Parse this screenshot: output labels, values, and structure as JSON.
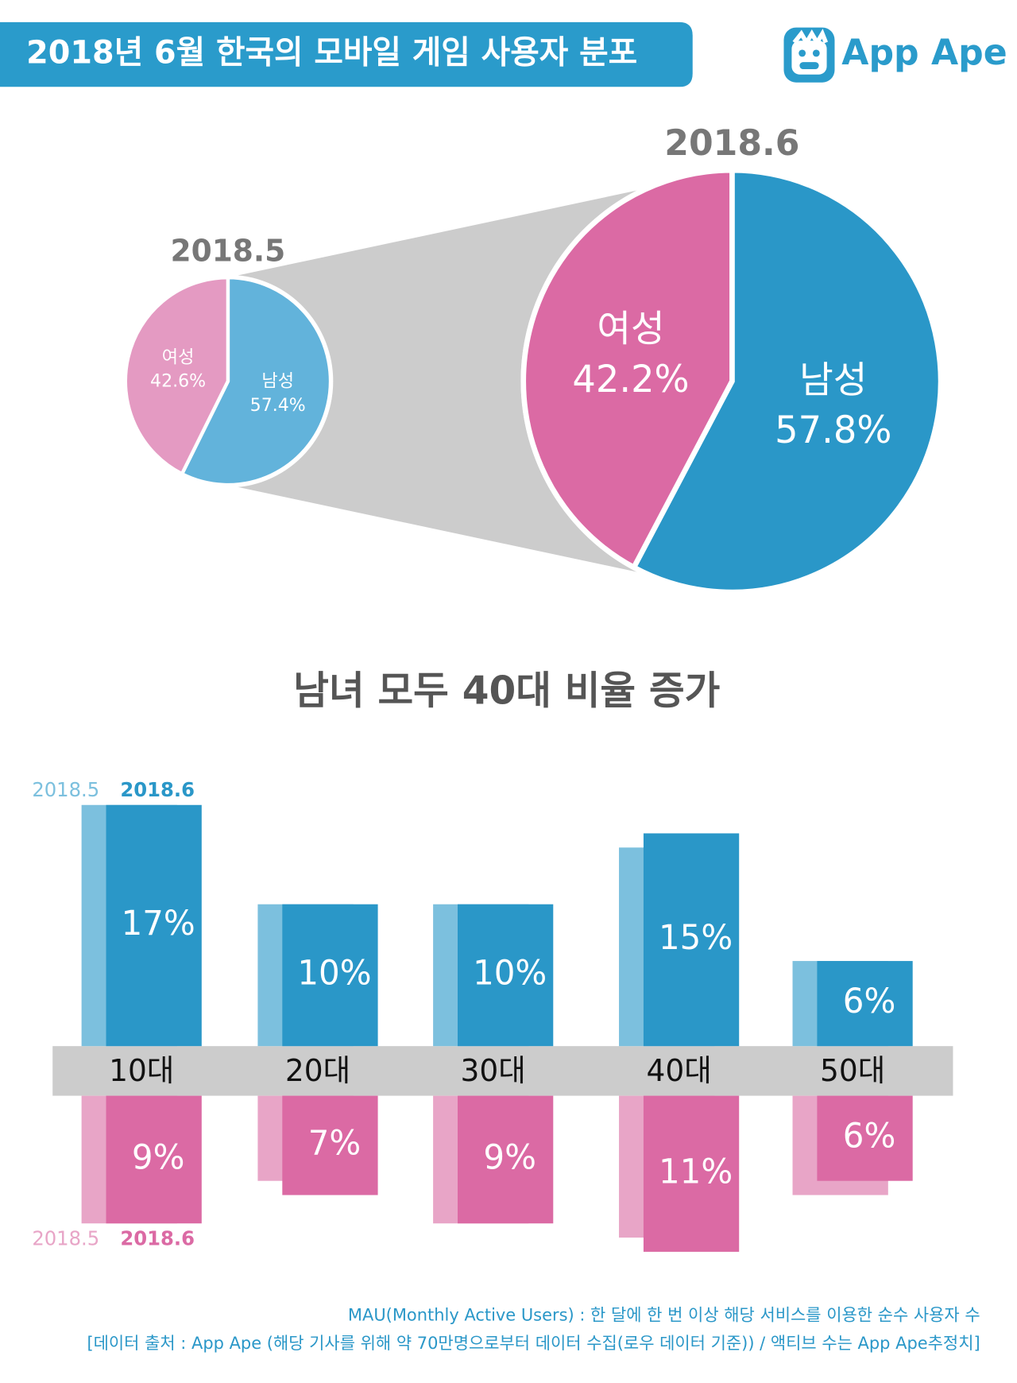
{
  "header": {
    "title": "2018년 6월 한국의 모바일 게임 사용자 분포",
    "brand": "App Ape"
  },
  "chart_data": [
    {
      "type": "pie",
      "title": "2018.5",
      "categories": [
        "남성",
        "여성"
      ],
      "values": [
        57.4,
        42.6
      ],
      "value_labels": [
        "57.4%",
        "42.6%"
      ],
      "colors": [
        "#62b3db",
        "#e49ac2"
      ]
    },
    {
      "type": "pie",
      "title": "2018.6",
      "categories": [
        "남성",
        "여성"
      ],
      "values": [
        57.8,
        42.2
      ],
      "value_labels": [
        "57.8%",
        "42.2%"
      ],
      "colors": [
        "#2a97c8",
        "#db6aa4"
      ]
    },
    {
      "type": "bar",
      "title": "남녀 모두 40대 비율 증가",
      "categories": [
        "10대",
        "20대",
        "30대",
        "40대",
        "50대"
      ],
      "series": [
        {
          "name": "2018.5",
          "color": "#7cc0de",
          "direction": "up",
          "values": [
            17,
            10,
            10,
            14,
            6
          ]
        },
        {
          "name": "2018.6",
          "color": "#2a97c8",
          "direction": "up",
          "values": [
            17,
            10,
            10,
            15,
            6
          ],
          "value_labels": [
            "17%",
            "10%",
            "10%",
            "15%",
            "6%"
          ]
        },
        {
          "name": "2018.5",
          "color": "#e8a5c7",
          "direction": "down",
          "values": [
            9,
            6,
            9,
            10,
            7
          ]
        },
        {
          "name": "2018.6",
          "color": "#db6aa4",
          "direction": "down",
          "values": [
            9,
            7,
            9,
            11,
            6
          ],
          "value_labels": [
            "9%",
            "7%",
            "9%",
            "11%",
            "6%"
          ]
        }
      ]
    }
  ],
  "footer": {
    "lines": [
      "MAU(Monthly Active Users) : 한 달에 한 번 이상 해당 서비스를 이용한 순수 사용자 수",
      "[데이터 출처 : App Ape (해당 기사를 위해 약 70만명으로부터 데이터 수집(로우 데이터 기준)) / 액티브 수는 App Ape추정치]"
    ]
  }
}
